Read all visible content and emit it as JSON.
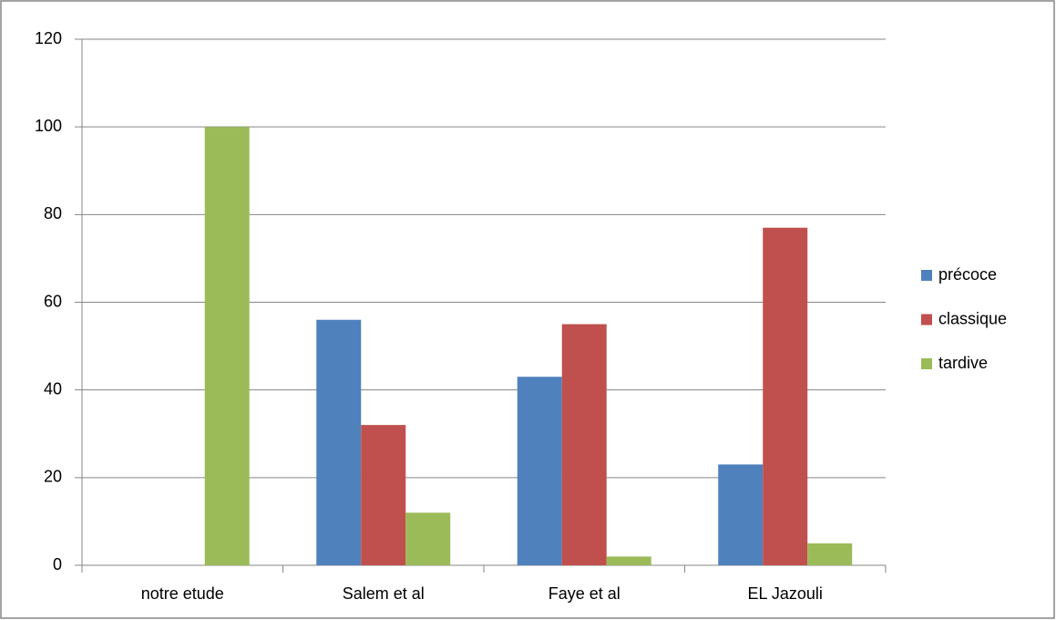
{
  "chart_data": {
    "type": "bar",
    "categories": [
      "notre etude",
      "Salem et al",
      "Faye et al",
      "EL Jazouli"
    ],
    "series": [
      {
        "name": "précoce",
        "color": "#4f81bd",
        "values": [
          0,
          56,
          43,
          23
        ]
      },
      {
        "name": "classique",
        "color": "#c0504d",
        "values": [
          0,
          32,
          55,
          77
        ]
      },
      {
        "name": "tardive",
        "color": "#9bbb59",
        "values": [
          100,
          12,
          2,
          5
        ]
      }
    ],
    "ylim": [
      0,
      120
    ],
    "yticks": [
      0,
      20,
      40,
      60,
      80,
      100,
      120
    ],
    "grid": true,
    "legend": "right"
  }
}
